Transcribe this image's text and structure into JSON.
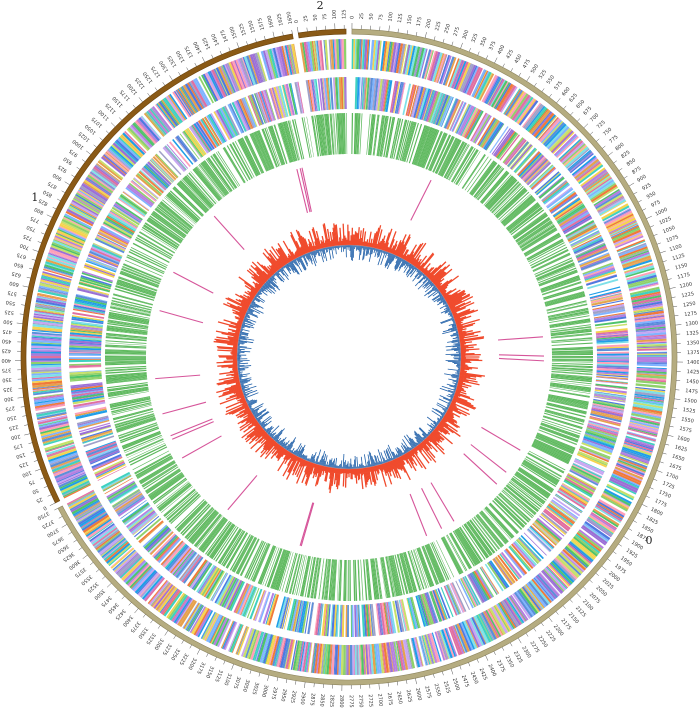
{
  "contigs": [
    {
      "label": "0",
      "length": 3750,
      "ring_color": "#b5ac80",
      "ring_edge": "#8f8760"
    },
    {
      "label": "1",
      "length": 1650,
      "ring_color": "#8a5a16",
      "ring_edge": "#6b430c"
    },
    {
      "label": "2",
      "length": 130,
      "ring_color": "#8a5a16",
      "ring_edge": "#6b430c"
    }
  ],
  "tick_interval": 25,
  "tracks": {
    "cog_palette": [
      "#4e79e0",
      "#7fb3ff",
      "#1f9ee8",
      "#9b6fd6",
      "#c7a6f2",
      "#e6a14d",
      "#f07a3a",
      "#f5d34e",
      "#8fd16a",
      "#4fc36a",
      "#3fd1c1",
      "#7ee0e8",
      "#e06fa1",
      "#ff9fb8",
      "#a0a0c8",
      "#c8e06a",
      "#5b8fd9",
      "#b57fe0"
    ],
    "gene_color": "#5cb85c",
    "rrna_color": "#d6559a",
    "gc_content_color": "#f04a2c",
    "gc_skew_color": "#1f5fa8"
  }
}
